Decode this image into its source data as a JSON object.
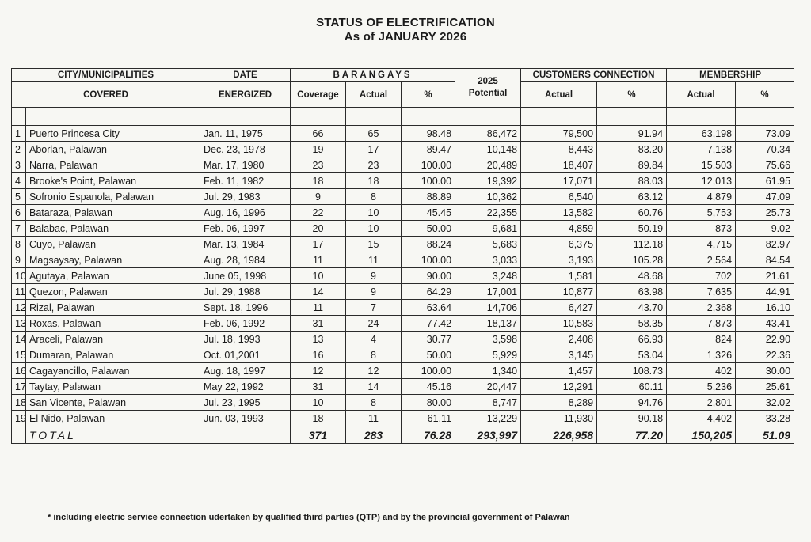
{
  "title": "STATUS OF ELECTRIFICATION",
  "subtitle": "As  of JANUARY 2026",
  "headers": {
    "city_top": "CITY/MUNICIPALITIES",
    "city_bottom": "COVERED",
    "date_top": "DATE",
    "date_bottom": "ENERGIZED",
    "barangays": "BARANGAYS",
    "coverage": "Coverage",
    "actual": "Actual",
    "percent": "%",
    "potential_year": "2025",
    "potential": "Potential",
    "customers": "CUSTOMERS CONNECTION",
    "membership": "MEMBERSHIP"
  },
  "rows": [
    {
      "no": "1",
      "name": "Puerto  Princesa City",
      "date": "Jan. 11, 1975",
      "coverage": "66",
      "actual": "65",
      "pct": "98.48",
      "potential": "86,472",
      "cust_actual": "79,500",
      "cust_pct": "91.94",
      "mem_actual": "63,198",
      "mem_pct": "73.09"
    },
    {
      "no": "2",
      "name": "Aborlan, Palawan",
      "date": "Dec. 23, 1978",
      "coverage": "19",
      "actual": "17",
      "pct": "89.47",
      "potential": "10,148",
      "cust_actual": "8,443",
      "cust_pct": "83.20",
      "mem_actual": "7,138",
      "mem_pct": "70.34"
    },
    {
      "no": "3",
      "name": "Narra, Palawan",
      "date": "Mar. 17, 1980",
      "coverage": "23",
      "actual": "23",
      "pct": "100.00",
      "potential": "20,489",
      "cust_actual": "18,407",
      "cust_pct": "89.84",
      "mem_actual": "15,503",
      "mem_pct": "75.66"
    },
    {
      "no": "4",
      "name": "Brooke's Point, Palawan",
      "date": "Feb. 11, 1982",
      "coverage": "18",
      "actual": "18",
      "pct": "100.00",
      "potential": "19,392",
      "cust_actual": "17,071",
      "cust_pct": "88.03",
      "mem_actual": "12,013",
      "mem_pct": "61.95"
    },
    {
      "no": "5",
      "name": "Sofronio Espanola, Palawan",
      "date": "Jul. 29, 1983",
      "coverage": "9",
      "actual": "8",
      "pct": "88.89",
      "potential": "10,362",
      "cust_actual": "6,540",
      "cust_pct": "63.12",
      "mem_actual": "4,879",
      "mem_pct": "47.09"
    },
    {
      "no": "6",
      "name": "Bataraza, Palawan",
      "date": "Aug. 16, 1996",
      "coverage": "22",
      "actual": "10",
      "pct": "45.45",
      "potential": "22,355",
      "cust_actual": "13,582",
      "cust_pct": "60.76",
      "mem_actual": "5,753",
      "mem_pct": "25.73"
    },
    {
      "no": "7",
      "name": "Balabac, Palawan",
      "date": "Feb. 06, 1997",
      "coverage": "20",
      "actual": "10",
      "pct": "50.00",
      "potential": "9,681",
      "cust_actual": "4,859",
      "cust_pct": "50.19",
      "mem_actual": "873",
      "mem_pct": "9.02"
    },
    {
      "no": "8",
      "name": "Cuyo, Palawan",
      "date": "Mar. 13, 1984",
      "coverage": "17",
      "actual": "15",
      "pct": "88.24",
      "potential": "5,683",
      "cust_actual": "6,375",
      "cust_pct": "112.18",
      "mem_actual": "4,715",
      "mem_pct": "82.97"
    },
    {
      "no": "9",
      "name": "Magsaysay, Palawan",
      "date": "Aug. 28, 1984",
      "coverage": "11",
      "actual": "11",
      "pct": "100.00",
      "potential": "3,033",
      "cust_actual": "3,193",
      "cust_pct": "105.28",
      "mem_actual": "2,564",
      "mem_pct": "84.54"
    },
    {
      "no": "10",
      "name": "Agutaya, Palawan",
      "date": "June 05, 1998",
      "coverage": "10",
      "actual": "9",
      "pct": "90.00",
      "potential": "3,248",
      "cust_actual": "1,581",
      "cust_pct": "48.68",
      "mem_actual": "702",
      "mem_pct": "21.61"
    },
    {
      "no": "11",
      "name": "Quezon, Palawan",
      "date": "Jul. 29, 1988",
      "coverage": "14",
      "actual": "9",
      "pct": "64.29",
      "potential": "17,001",
      "cust_actual": "10,877",
      "cust_pct": "63.98",
      "mem_actual": "7,635",
      "mem_pct": "44.91"
    },
    {
      "no": "12",
      "name": "Rizal, Palawan",
      "date": "Sept. 18, 1996",
      "coverage": "11",
      "actual": "7",
      "pct": "63.64",
      "potential": "14,706",
      "cust_actual": "6,427",
      "cust_pct": "43.70",
      "mem_actual": "2,368",
      "mem_pct": "16.10"
    },
    {
      "no": "13",
      "name": "Roxas, Palawan",
      "date": "Feb. 06, 1992",
      "coverage": "31",
      "actual": "24",
      "pct": "77.42",
      "potential": "18,137",
      "cust_actual": "10,583",
      "cust_pct": "58.35",
      "mem_actual": "7,873",
      "mem_pct": "43.41"
    },
    {
      "no": "14",
      "name": "Araceli, Palawan",
      "date": "Jul. 18, 1993",
      "coverage": "13",
      "actual": "4",
      "pct": "30.77",
      "potential": "3,598",
      "cust_actual": "2,408",
      "cust_pct": "66.93",
      "mem_actual": "824",
      "mem_pct": "22.90"
    },
    {
      "no": "15",
      "name": "Dumaran, Palawan",
      "date": "Oct. 01,2001",
      "coverage": "16",
      "actual": "8",
      "pct": "50.00",
      "potential": "5,929",
      "cust_actual": "3,145",
      "cust_pct": "53.04",
      "mem_actual": "1,326",
      "mem_pct": "22.36"
    },
    {
      "no": "16",
      "name": "Cagayancillo, Palawan",
      "date": "Aug. 18, 1997",
      "coverage": "12",
      "actual": "12",
      "pct": "100.00",
      "potential": "1,340",
      "cust_actual": "1,457",
      "cust_pct": "108.73",
      "mem_actual": "402",
      "mem_pct": "30.00"
    },
    {
      "no": "17",
      "name": "Taytay, Palawan",
      "date": "May 22, 1992",
      "coverage": "31",
      "actual": "14",
      "pct": "45.16",
      "potential": "20,447",
      "cust_actual": "12,291",
      "cust_pct": "60.11",
      "mem_actual": "5,236",
      "mem_pct": "25.61"
    },
    {
      "no": "18",
      "name": "San Vicente, Palawan",
      "date": "Jul. 23, 1995",
      "coverage": "10",
      "actual": "8",
      "pct": "80.00",
      "potential": "8,747",
      "cust_actual": "8,289",
      "cust_pct": "94.76",
      "mem_actual": "2,801",
      "mem_pct": "32.02"
    },
    {
      "no": "19",
      "name": "El Nido, Palawan",
      "date": "Jun. 03, 1993",
      "coverage": "18",
      "actual": "11",
      "pct": "61.11",
      "potential": "13,229",
      "cust_actual": "11,930",
      "cust_pct": "90.18",
      "mem_actual": "4,402",
      "mem_pct": "33.28"
    }
  ],
  "total": {
    "label": "TOTAL",
    "coverage": "371",
    "actual": "283",
    "pct": "76.28",
    "potential": "293,997",
    "cust_actual": "226,958",
    "cust_pct": "77.20",
    "mem_actual": "150,205",
    "mem_pct": "51.09"
  },
  "footnote": "* including electric service connection udertaken by  qualified third parties (QTP) and by the provincial government of Palawan"
}
